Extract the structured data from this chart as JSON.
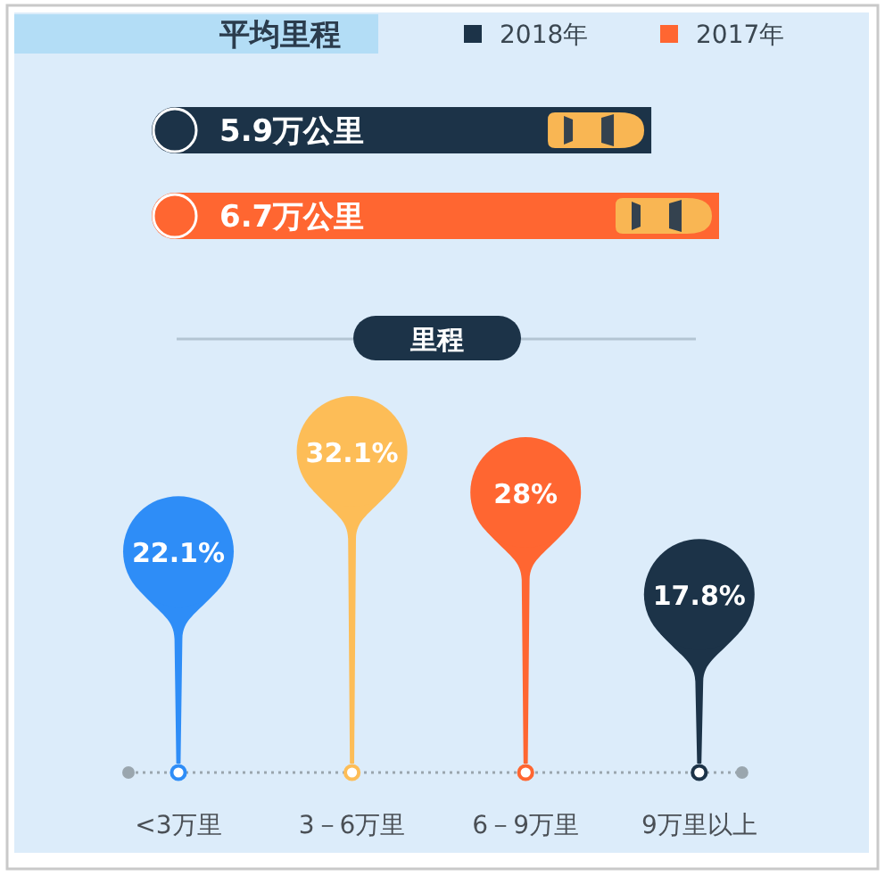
{
  "chart_data": [
    {
      "type": "bar",
      "orientation": "horizontal",
      "stacked": true,
      "title": "平均里程",
      "categories": [
        null,
        null
      ],
      "legend": "top right",
      "series": [
        {
          "name": "2018年",
          "color": "#1c3348",
          "values": [
            5.9,
            null
          ],
          "value_labels": [
            "5.9万公里",
            null
          ]
        },
        {
          "name": "2017年",
          "color": "#ff6631",
          "values": [
            null,
            6.7
          ],
          "value_labels": [
            null,
            "6.7万公里"
          ]
        }
      ]
    },
    {
      "type": "lollipop",
      "title": "里程",
      "categories": [
        "<3万里",
        "3－6万里",
        "6－9万里",
        "9万里以上"
      ],
      "values": [
        22.1,
        32.1,
        28,
        17.8
      ],
      "colors": [
        "#2e8df7",
        "#fdbd57",
        "#ff6631",
        "#1c3348"
      ],
      "value_labels": [
        "22.1%",
        "32.1%",
        "28%",
        "17.8%"
      ]
    }
  ]
}
